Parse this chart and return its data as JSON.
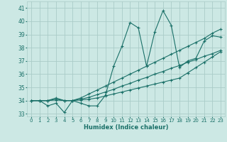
{
  "xlabel": "Humidex (Indice chaleur)",
  "x_ticks": [
    0,
    1,
    2,
    3,
    4,
    5,
    6,
    7,
    8,
    9,
    10,
    11,
    12,
    13,
    14,
    15,
    16,
    17,
    18,
    19,
    20,
    21,
    22,
    23
  ],
  "ylim": [
    32.8,
    41.5
  ],
  "xlim": [
    -0.5,
    23.5
  ],
  "yticks": [
    33,
    34,
    35,
    36,
    37,
    38,
    39,
    40,
    41
  ],
  "bg_color": "#cce8e4",
  "grid_color": "#aaccc8",
  "line_color": "#1a7068",
  "series": [
    [
      34.0,
      34.0,
      33.6,
      33.8,
      33.1,
      34.0,
      33.8,
      33.6,
      33.6,
      34.4,
      36.6,
      38.1,
      39.9,
      39.5,
      36.6,
      39.2,
      40.8,
      39.7,
      36.5,
      37.0,
      37.2,
      38.5,
      38.9,
      38.8
    ],
    [
      34.0,
      34.0,
      34.0,
      34.2,
      34.0,
      34.0,
      34.2,
      34.5,
      34.8,
      35.1,
      35.4,
      35.7,
      36.0,
      36.3,
      36.6,
      36.9,
      37.2,
      37.5,
      37.8,
      38.1,
      38.4,
      38.7,
      39.1,
      39.4
    ],
    [
      34.0,
      34.0,
      34.0,
      34.1,
      34.0,
      34.0,
      34.1,
      34.25,
      34.45,
      34.65,
      34.85,
      35.1,
      35.3,
      35.55,
      35.75,
      36.0,
      36.2,
      36.45,
      36.65,
      36.9,
      37.1,
      37.35,
      37.55,
      37.8
    ],
    [
      34.0,
      34.0,
      34.0,
      34.05,
      34.0,
      34.0,
      34.05,
      34.1,
      34.2,
      34.35,
      34.5,
      34.65,
      34.8,
      34.95,
      35.1,
      35.25,
      35.4,
      35.55,
      35.7,
      36.1,
      36.5,
      36.9,
      37.3,
      37.7
    ]
  ]
}
